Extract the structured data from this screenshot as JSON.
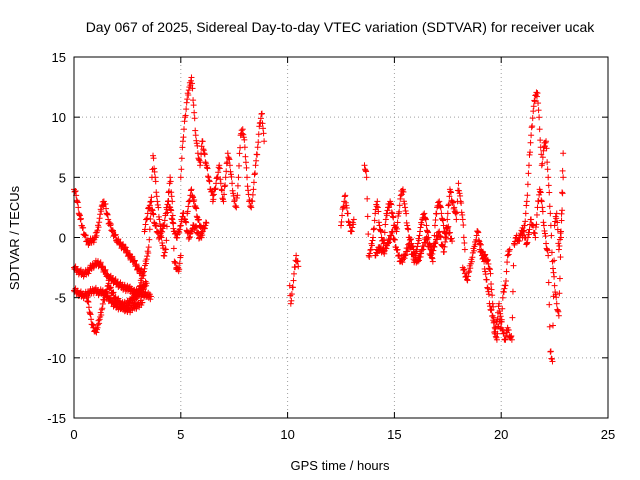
{
  "chart_data": {
    "type": "scatter",
    "title": "Day 067 of 2025, Sidereal Day-to-day VTEC variation (SDTVAR) for receiver ucak",
    "xlabel": "GPS time / hours",
    "ylabel": "SDTVAR / TECUs",
    "xlim": [
      0,
      25
    ],
    "ylim": [
      -15,
      15
    ],
    "xticks": [
      0,
      5,
      10,
      15,
      20,
      25
    ],
    "yticks": [
      -15,
      -10,
      -5,
      0,
      5,
      10,
      15
    ],
    "grid": true,
    "marker": "plus",
    "color": "#ff0000",
    "series": [
      {
        "name": "band_upper_decline",
        "x": [
          0.0,
          0.1,
          0.2,
          0.3,
          0.4,
          0.5,
          0.6,
          0.7,
          0.8,
          0.9,
          1.0,
          1.1,
          1.2,
          1.3,
          1.4,
          1.5,
          1.6,
          1.7,
          1.8,
          1.9,
          2.0
        ],
        "y": [
          4.0,
          3.5,
          2.5,
          1.5,
          0.8,
          0.2,
          -0.3,
          -0.4,
          -0.3,
          -0.2,
          0.0,
          0.6,
          1.6,
          2.6,
          3.0,
          2.4,
          1.5,
          1.0,
          0.5,
          0.2,
          -0.2
        ]
      },
      {
        "name": "band_upper_continue",
        "x": [
          2.0,
          2.1,
          2.2,
          2.4,
          2.6,
          2.8,
          3.0,
          3.2
        ],
        "y": [
          -0.3,
          -0.4,
          -0.6,
          -1.0,
          -1.5,
          -2.0,
          -2.6,
          -3.0
        ]
      },
      {
        "name": "band_middle",
        "x": [
          0.0,
          0.1,
          0.2,
          0.3,
          0.4,
          0.5,
          0.6,
          0.7,
          0.8,
          0.9,
          1.0,
          1.1,
          1.2,
          1.3,
          1.4,
          1.5,
          1.6,
          1.7,
          1.8,
          1.9,
          2.0,
          2.1,
          2.2,
          2.4,
          2.6,
          2.8,
          3.0,
          3.2,
          3.4,
          3.6
        ],
        "y": [
          -2.5,
          -2.7,
          -2.8,
          -2.9,
          -3.0,
          -3.0,
          -2.9,
          -2.7,
          -2.5,
          -2.3,
          -2.2,
          -2.1,
          -2.2,
          -2.4,
          -2.7,
          -3.0,
          -3.3,
          -3.4,
          -3.5,
          -3.6,
          -3.8,
          -3.9,
          -4.0,
          -4.2,
          -4.3,
          -4.5,
          -4.6,
          -4.7,
          -4.8,
          -4.9
        ]
      },
      {
        "name": "band_lower",
        "x": [
          0.0,
          0.1,
          0.2,
          0.3,
          0.4,
          0.5,
          0.6,
          0.7,
          0.8,
          0.9,
          1.0,
          1.1,
          1.2,
          1.3,
          1.4,
          1.5,
          1.6,
          1.7,
          1.8,
          1.9,
          2.0,
          2.2,
          2.4,
          2.6,
          2.8,
          3.0,
          3.2
        ],
        "y": [
          -4.4,
          -4.5,
          -4.6,
          -4.7,
          -4.8,
          -4.8,
          -4.7,
          -4.6,
          -4.5,
          -4.4,
          -4.4,
          -4.5,
          -4.6,
          -4.5,
          -4.6,
          -4.8,
          -5.0,
          -5.2,
          -5.4,
          -5.6,
          -5.7,
          -5.8,
          -5.9,
          -6.0,
          -5.8,
          -5.6,
          -5.4
        ]
      },
      {
        "name": "dip_track",
        "x": [
          0.6,
          0.7,
          0.8,
          0.9,
          1.0,
          1.1,
          1.2,
          1.3,
          1.4,
          1.5,
          1.6,
          1.7,
          1.8,
          1.9,
          2.0,
          2.2,
          2.4,
          2.6,
          2.8,
          3.0,
          3.2,
          3.4
        ],
        "y": [
          -5.0,
          -5.8,
          -6.8,
          -7.5,
          -7.8,
          -7.5,
          -6.8,
          -6.0,
          -5.2,
          -4.5,
          -4.0,
          -4.2,
          -4.6,
          -5.0,
          -5.2,
          -5.5,
          -5.6,
          -5.4,
          -5.0,
          -4.6,
          -4.2,
          -3.8
        ]
      },
      {
        "name": "rise_2h_5h",
        "x": [
          2.8,
          2.9,
          3.0,
          3.1,
          3.2,
          3.3,
          3.4,
          3.5,
          3.6,
          3.65,
          3.7,
          3.8,
          3.9,
          4.0,
          4.1,
          4.2,
          4.3,
          4.4,
          4.5,
          4.6,
          4.7,
          4.8,
          4.9,
          5.0
        ],
        "y": [
          -5.5,
          -5.0,
          -4.6,
          -4.0,
          -3.2,
          -2.6,
          -1.8,
          -0.8,
          2.0,
          5.0,
          6.8,
          5.0,
          3.0,
          1.5,
          0.0,
          -1.5,
          -1.0,
          3.0,
          5.0,
          3.0,
          -2.0,
          -2.5,
          -2.8,
          -1.5
        ]
      },
      {
        "name": "cluster_3h_5h",
        "x": [
          3.3,
          3.4,
          3.5,
          3.6,
          3.7,
          3.8,
          3.9,
          4.0,
          4.1,
          4.2,
          4.3,
          4.4,
          4.5,
          4.6,
          4.7,
          4.8,
          4.9,
          5.0,
          5.1,
          5.2,
          5.3,
          5.4,
          5.5,
          5.6,
          5.7,
          5.8,
          5.9,
          6.0
        ],
        "y": [
          0.5,
          1.5,
          2.5,
          3.0,
          2.0,
          1.0,
          0.5,
          0.0,
          0.5,
          1.0,
          2.0,
          3.0,
          2.5,
          1.5,
          0.5,
          0.0,
          0.5,
          1.0,
          2.0,
          1.5,
          0.5,
          0.0,
          0.5,
          1.0,
          0.8,
          0.3,
          0.0,
          0.2
        ]
      },
      {
        "name": "peak_5h_6h",
        "x": [
          5.0,
          5.1,
          5.2,
          5.3,
          5.4,
          5.5,
          5.6,
          5.7,
          5.8,
          5.9,
          6.0,
          6.1,
          6.2,
          6.3,
          6.4,
          6.5
        ],
        "y": [
          5.0,
          8.0,
          10.0,
          11.5,
          12.5,
          13.3,
          11.0,
          8.5,
          7.0,
          6.0,
          8.0,
          7.0,
          6.0,
          5.0,
          4.0,
          3.5
        ]
      },
      {
        "name": "cluster_6h_9h",
        "x": [
          6.5,
          6.6,
          6.7,
          6.8,
          6.9,
          7.0,
          7.1,
          7.2,
          7.3,
          7.4,
          7.5,
          7.6,
          7.7,
          7.8,
          7.9,
          8.0,
          8.1,
          8.2,
          8.3,
          8.4,
          8.5,
          8.6,
          8.7,
          8.8,
          8.9
        ],
        "y": [
          3.0,
          4.0,
          5.0,
          6.0,
          4.0,
          3.0,
          5.0,
          7.0,
          6.0,
          4.5,
          3.0,
          2.5,
          5.0,
          8.5,
          9.0,
          7.5,
          5.0,
          3.0,
          2.5,
          4.0,
          6.0,
          7.5,
          9.5,
          10.3,
          8.0
        ]
      },
      {
        "name": "cluster_5h_6h_low",
        "x": [
          5.3,
          5.4,
          5.5,
          5.6,
          5.7,
          5.8,
          5.9,
          6.0,
          6.1,
          6.2
        ],
        "y": [
          2.0,
          3.0,
          4.0,
          3.0,
          2.5,
          1.5,
          1.0,
          0.5,
          0.8,
          1.2
        ]
      },
      {
        "name": "isolated_10h",
        "x": [
          10.1,
          10.15,
          10.4,
          10.45,
          10.5
        ],
        "y": [
          -4.0,
          -5.5,
          -1.5,
          -2.0,
          -2.4
        ]
      },
      {
        "name": "cluster_12h_13h",
        "x": [
          12.5,
          12.6,
          12.7,
          12.8,
          12.9,
          13.0,
          13.1
        ],
        "y": [
          1.0,
          2.5,
          3.5,
          2.0,
          1.0,
          0.5,
          1.5
        ]
      },
      {
        "name": "cluster_13h_18h",
        "x": [
          13.6,
          13.7,
          13.8,
          13.9,
          14.0,
          14.1,
          14.2,
          14.3,
          14.4,
          14.5,
          14.6,
          14.7,
          14.8,
          14.9,
          15.0,
          15.1,
          15.2,
          15.3,
          15.4,
          15.5,
          15.6,
          15.7,
          15.8,
          15.9,
          16.0,
          16.1,
          16.2,
          16.3,
          16.4,
          16.5,
          16.6,
          16.7,
          16.8,
          16.9,
          17.0,
          17.1,
          17.2,
          17.3,
          17.4,
          17.5,
          17.6,
          17.7,
          17.8,
          17.9,
          18.0,
          18.1,
          18.2,
          18.3
        ],
        "y": [
          6.0,
          5.0,
          -1.5,
          -1.0,
          0.0,
          2.0,
          3.0,
          1.0,
          0.0,
          -0.5,
          1.5,
          2.5,
          3.0,
          2.0,
          1.0,
          0.5,
          2.0,
          3.5,
          4.0,
          2.5,
          1.0,
          0.0,
          -0.5,
          -1.0,
          -1.5,
          -0.5,
          0.5,
          1.5,
          2.0,
          1.0,
          0.0,
          -1.0,
          -2.0,
          1.0,
          2.5,
          3.0,
          2.0,
          1.0,
          0.0,
          2.0,
          4.0,
          3.0,
          2.5,
          1.5,
          4.5,
          3.0,
          1.5,
          -1.0
        ]
      },
      {
        "name": "cluster_13h_18h_low",
        "x": [
          14.1,
          14.3,
          14.5,
          14.7,
          14.9,
          15.1,
          15.3,
          15.5,
          15.7,
          15.9,
          16.1,
          16.3,
          16.5,
          16.7,
          16.9,
          17.1,
          17.3,
          17.5,
          17.7
        ],
        "y": [
          -1.5,
          -0.8,
          -1.2,
          -0.5,
          0.5,
          -1.0,
          -2.0,
          -1.5,
          -0.5,
          -1.8,
          -2.0,
          -1.0,
          0.0,
          -1.5,
          -0.5,
          0.5,
          -1.2,
          0.8,
          -0.3
        ]
      },
      {
        "name": "cluster_18h_20h",
        "x": [
          18.2,
          18.3,
          18.4,
          18.5,
          18.9,
          19.0,
          19.1,
          19.3,
          19.4,
          19.5,
          19.6,
          19.7,
          19.8,
          19.9,
          20.0,
          20.1,
          20.2,
          20.3,
          20.4
        ],
        "y": [
          -2.5,
          -3.0,
          -3.5,
          -2.8,
          0.5,
          -0.5,
          -1.2,
          -1.8,
          -2.2,
          -3.0,
          -5.5,
          -7.5,
          -8.5,
          -6.8,
          -7.5,
          -4.5,
          -4.0,
          -1.5,
          -1.0
        ]
      },
      {
        "name": "cluster_19h_21h",
        "x": [
          19.0,
          19.1,
          19.2,
          19.3,
          19.4,
          19.5,
          19.6,
          19.7,
          19.8,
          19.9,
          20.0,
          20.1,
          20.2,
          20.3,
          20.4,
          20.5,
          20.6,
          20.7,
          20.8,
          20.9,
          21.0
        ],
        "y": [
          -1.0,
          -1.5,
          -2.0,
          -3.5,
          -4.5,
          -6.0,
          -6.5,
          -8.0,
          -7.0,
          -5.5,
          -7.0,
          -8.0,
          -8.5,
          -7.5,
          -8.2,
          -8.5,
          -0.5,
          0.0,
          -0.3,
          0.2,
          0.5
        ]
      },
      {
        "name": "rise_21h_23h",
        "x": [
          21.0,
          21.1,
          21.2,
          21.3,
          21.4,
          21.5,
          21.6,
          21.7,
          21.8,
          21.9,
          22.0,
          22.1,
          22.2,
          22.3,
          22.4,
          22.5,
          22.6,
          22.7,
          22.8,
          22.9
        ],
        "y": [
          0.0,
          1.0,
          3.0,
          6.0,
          8.5,
          10.5,
          11.8,
          12.0,
          9.0,
          6.0,
          7.5,
          8.0,
          5.0,
          2.0,
          -2.0,
          -4.0,
          -5.5,
          -6.5,
          0.0,
          5.0
        ]
      },
      {
        "name": "cluster_21h_23h_low",
        "x": [
          21.0,
          21.2,
          21.4,
          21.6,
          21.7,
          21.8,
          21.9,
          22.0,
          22.1,
          22.2,
          22.3,
          22.4,
          22.5,
          22.6,
          22.7,
          22.8,
          22.9
        ],
        "y": [
          0.8,
          -0.5,
          1.5,
          0.0,
          2.5,
          4.0,
          3.0,
          1.0,
          -0.5,
          -1.5,
          -9.5,
          -10.3,
          1.0,
          2.0,
          -1.0,
          0.5,
          7.0
        ]
      }
    ]
  }
}
